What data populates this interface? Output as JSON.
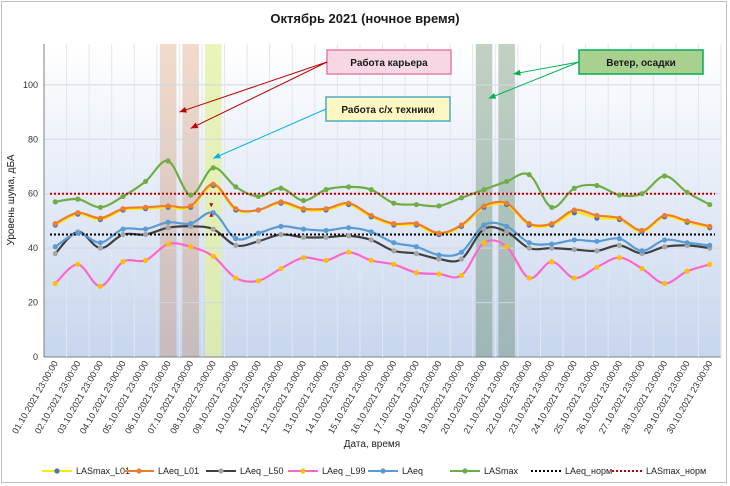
{
  "chart_data": {
    "type": "line",
    "title": "Октябрь 2021 (ночное время)",
    "xlabel": "Дата, время",
    "ylabel": "Уровень шума, дБА",
    "ylim": [
      0,
      115
    ],
    "yticks": [
      0,
      20,
      40,
      60,
      80,
      100
    ],
    "grid": true,
    "legend_position": "bottom",
    "categories": [
      "01.10.2021 23:00:00",
      "02.10.2021 23:00:00",
      "03.10.2021 23:00:00",
      "04.10.2021 23:00:00",
      "05.10.2021 23:00:00",
      "06.10.2021 23:00:00",
      "07.10.2021 23:00:00",
      "08.10.2021 23:00:00",
      "09.10.2021 23:00:00",
      "10.10.2021 23:00:00",
      "11.10.2021 23:00:00",
      "12.10.2021 23:00:00",
      "13.10.2021 23:00:00",
      "14.10.2021 23:00:00",
      "15.10.2021 23:00:00",
      "16.10.2021 23:00:00",
      "17.10.2021 23:00:00",
      "18.10.2021 23:00:00",
      "19.10.2021 23:00:00",
      "20.10.2021 23:00:00",
      "21.10.2021 23:00:00",
      "22.10.2021 23:00:00",
      "23.10.2021 23:00:00",
      "24.10.2021 23:00:00",
      "25.10.2021 23:00:00",
      "26.10.2021 23:00:00",
      "27.10.2021 23:00:00",
      "28.10.2021 23:00:00",
      "29.10.2021 23:00:00",
      "30.10.2021 23:00:00"
    ],
    "series": [
      {
        "name": "LASmax_L01",
        "color": "#ffeb00",
        "marker": "#4472c4",
        "dash": "",
        "values": [
          48.5,
          52.5,
          50.5,
          54,
          54.5,
          55,
          55,
          63,
          54,
          54,
          56.5,
          54,
          54,
          56,
          51.5,
          48.5,
          48.5,
          45,
          48,
          55,
          56,
          48.5,
          48.5,
          53,
          51,
          50.5,
          46,
          51.5,
          49.5,
          47.5
        ]
      },
      {
        "name": "LAeq_L01",
        "color": "#ed7d31",
        "marker": "#ed7d31",
        "dash": "",
        "values": [
          49,
          53,
          51,
          54.5,
          55,
          55.5,
          55.5,
          63.5,
          54.5,
          54,
          57,
          54.5,
          54.5,
          56.5,
          52,
          49,
          49,
          45.5,
          48.5,
          55.5,
          56.5,
          49,
          49,
          54,
          52,
          51,
          46.5,
          52,
          50,
          48
        ]
      },
      {
        "name": "LAeq _L50",
        "color": "#404040",
        "marker": "#a6a6a6",
        "dash": "",
        "values": [
          38,
          46,
          40,
          45,
          45,
          47.5,
          48,
          47,
          41,
          42.5,
          45,
          44,
          44,
          44.5,
          43,
          39,
          38,
          36,
          36,
          47,
          46,
          40,
          40,
          39.5,
          39,
          41,
          38,
          40.5,
          41,
          40
        ]
      },
      {
        "name": "LAeq _L99",
        "color": "#ff66cc",
        "marker": "#ffc000",
        "dash": "",
        "values": [
          27,
          34,
          26,
          35,
          35.5,
          41.5,
          40.5,
          37,
          29,
          28,
          32.5,
          36.5,
          35.5,
          38.5,
          35.5,
          34,
          31,
          30.5,
          30,
          42,
          40.5,
          29,
          35,
          29,
          33,
          36.5,
          32.5,
          27,
          31.5,
          34
        ]
      },
      {
        "name": "LAeq",
        "color": "#5b9bd5",
        "marker": "#5b9bd5",
        "dash": "",
        "values": [
          40.5,
          45.5,
          42,
          47,
          47,
          49.5,
          49,
          53,
          43.5,
          45.5,
          48,
          47,
          46.5,
          47.5,
          46,
          42,
          40.5,
          37.5,
          38.5,
          48.5,
          48,
          42,
          41.5,
          43,
          42.5,
          43.5,
          39,
          43,
          42,
          41
        ]
      },
      {
        "name": "LASmax",
        "color": "#70ad47",
        "marker": "#70ad47",
        "dash": "",
        "values": [
          57,
          58,
          55,
          59,
          64.5,
          72,
          59.5,
          69.5,
          62.5,
          59,
          62,
          57.5,
          61.5,
          62.5,
          61.5,
          56.5,
          56,
          55.5,
          58.5,
          61.5,
          64.5,
          67,
          55,
          62,
          63,
          59.5,
          60,
          66.5,
          60.5,
          56
        ]
      },
      {
        "name": "LAeq_норм",
        "color": "#000000",
        "marker": "",
        "dash": "2,2",
        "values": [
          45,
          45,
          45,
          45,
          45,
          45,
          45,
          45,
          45,
          45,
          45,
          45,
          45,
          45,
          45,
          45,
          45,
          45,
          45,
          45,
          45,
          45,
          45,
          45,
          45,
          45,
          45,
          45,
          45,
          45
        ]
      },
      {
        "name": "LASmax_норм",
        "color": "#c00000",
        "marker": "",
        "dash": "2,2",
        "values": [
          60,
          60,
          60,
          60,
          60,
          60,
          60,
          60,
          60,
          60,
          60,
          60,
          60,
          60,
          60,
          60,
          60,
          60,
          60,
          60,
          60,
          60,
          60,
          60,
          60,
          60,
          60,
          60,
          60,
          60
        ]
      }
    ],
    "highlight_bands": [
      {
        "category_index": 5,
        "color": "#c55a11",
        "opacity": 0.22
      },
      {
        "category_index": 6,
        "color": "#c55a11",
        "opacity": 0.22
      },
      {
        "category_index": 7,
        "color": "#e2f0a0",
        "opacity": 0.75
      },
      {
        "category_index": 19,
        "color": "#507a50",
        "opacity": 0.35
      },
      {
        "category_index": 20,
        "color": "#507a50",
        "opacity": 0.35
      }
    ],
    "annotations": [
      {
        "text": "Работа карьера",
        "bg": "#f6d7e3",
        "border": "#e57ea6",
        "arrow_color": "#c00000",
        "arrow_targets": [
          [
            5.5,
            90
          ],
          [
            6.0,
            84
          ]
        ]
      },
      {
        "text": "Работа с/х техники",
        "bg": "#fff7c2",
        "border": "#4bacc6",
        "arrow_color": "#00b0f0",
        "arrow_targets": [
          [
            7.0,
            73
          ]
        ]
      },
      {
        "text": "Ветер, осадки",
        "bg": "#a9d08e",
        "border": "#00b050",
        "arrow_color": "#00b050",
        "arrow_targets": [
          [
            19.2,
            95
          ],
          [
            20.3,
            104
          ]
        ]
      }
    ]
  }
}
